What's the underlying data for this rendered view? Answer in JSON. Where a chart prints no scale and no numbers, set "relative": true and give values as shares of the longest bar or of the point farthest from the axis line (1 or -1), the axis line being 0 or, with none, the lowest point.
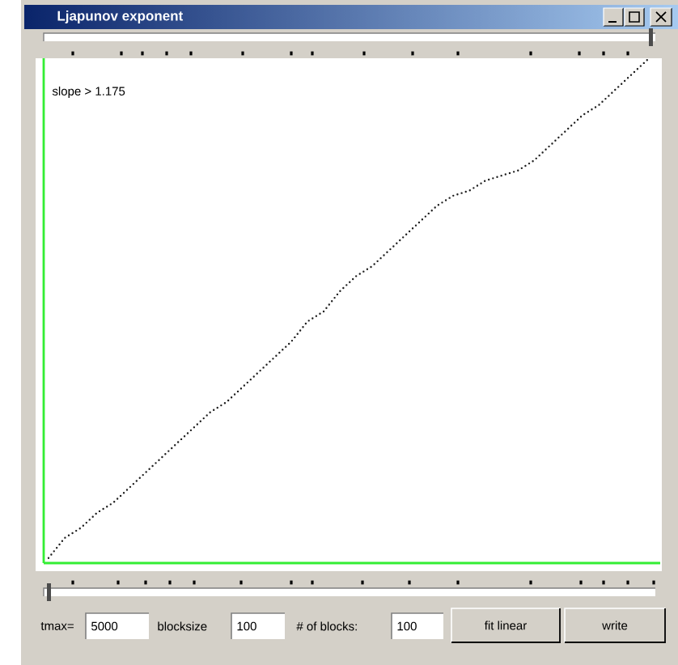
{
  "chart_data": {
    "type": "line",
    "title": "Ljapunov exponent",
    "annotations": [
      "slope > 1.175",
      "tmax=",
      "5000",
      "blocksize",
      "100",
      "# of blocks:",
      "100",
      "fit linear",
      "write"
    ],
    "categories": [
      null,
      null,
      null,
      null,
      null,
      null,
      null,
      null,
      null,
      null,
      null,
      null,
      null,
      null,
      null,
      null,
      null,
      null,
      null,
      null,
      null,
      null,
      null,
      null,
      null,
      null,
      null,
      null,
      null,
      null,
      null,
      null,
      null,
      null,
      null,
      null,
      null,
      null
    ],
    "values": [
      0.01,
      0.05,
      0.07,
      0.1,
      0.12,
      0.15,
      0.18,
      0.21,
      0.24,
      0.27,
      0.3,
      0.32,
      0.35,
      0.38,
      0.41,
      0.44,
      0.48,
      0.5,
      0.54,
      0.57,
      0.59,
      0.62,
      0.65,
      0.68,
      0.71,
      0.73,
      0.74,
      0.76,
      0.77,
      0.78,
      0.8,
      0.83,
      0.86,
      0.89,
      0.91,
      0.94,
      0.97,
      1.0
    ],
    "color": "#1e1e1e",
    "relative": true,
    "line_style": "dotted"
  }
}
